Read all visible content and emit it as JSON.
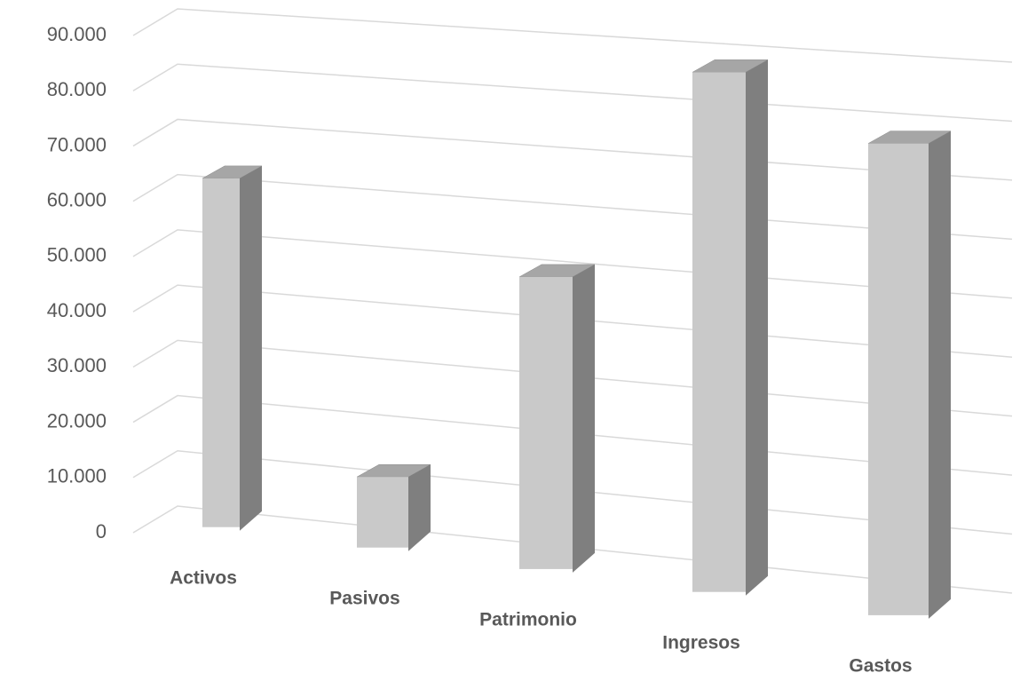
{
  "chart_data": {
    "type": "bar3d",
    "categories": [
      "Activos",
      "Pasivos",
      "Patrimonio",
      "Ingresos",
      "Gastos"
    ],
    "values": [
      60000,
      12000,
      49000,
      86000,
      77000
    ],
    "color": "#c9c9c9",
    "ylim": [
      0,
      90000
    ],
    "yticks": [
      0,
      {
        "value": 10000,
        "label": "10.000"
      },
      {
        "value": 20000,
        "label": "20.000"
      },
      {
        "value": 30000,
        "label": "30.000"
      },
      {
        "value": 40000,
        "label": "40.000"
      },
      {
        "value": 50000,
        "label": "50.000"
      },
      {
        "value": 60000,
        "label": "60.000"
      },
      {
        "value": 70000,
        "label": "70.000"
      },
      {
        "value": 80000,
        "label": "80.000"
      },
      {
        "value": 90000,
        "label": "90.000"
      }
    ],
    "grid": true
  }
}
